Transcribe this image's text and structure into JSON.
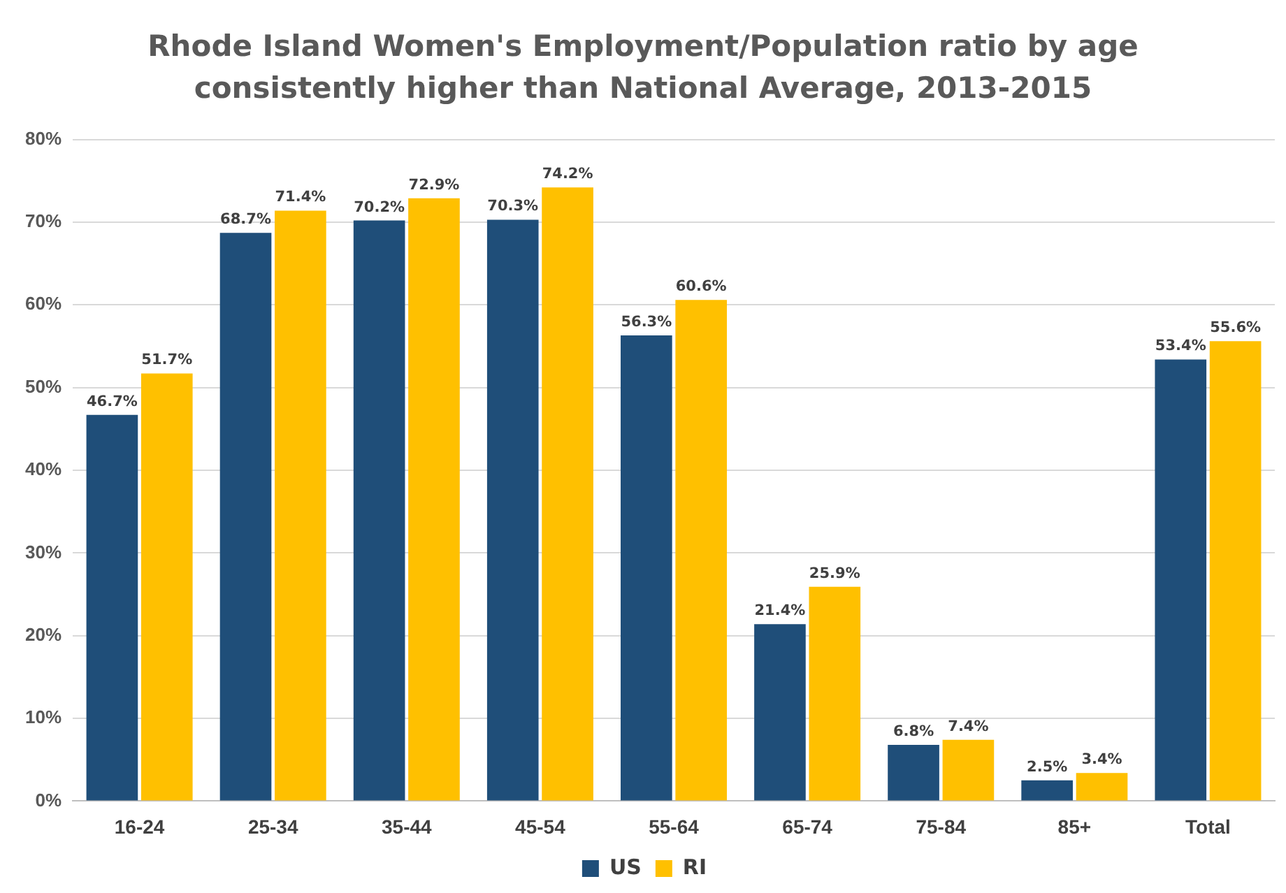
{
  "chart_data": {
    "type": "bar",
    "title": "Rhode Island Women's Employment/Population ratio by age consistently higher than National Average, 2013-2015",
    "categories": [
      "16-24",
      "25-34",
      "35-44",
      "45-54",
      "55-64",
      "65-74",
      "75-84",
      "85+",
      "Total"
    ],
    "series": [
      {
        "name": "US",
        "color": "#1f4e79",
        "values": [
          46.7,
          68.7,
          70.2,
          70.3,
          56.3,
          21.4,
          6.8,
          2.5,
          53.4
        ],
        "value_labels": [
          "46.7%",
          "68.7%",
          "70.2%",
          "70.3%",
          "56.3%",
          "21.4%",
          "6.8%",
          "2.5%",
          "53.4%"
        ]
      },
      {
        "name": "RI",
        "color": "#ffc000",
        "values": [
          51.7,
          71.4,
          72.9,
          74.2,
          60.6,
          25.9,
          7.4,
          3.4,
          55.6
        ],
        "value_labels": [
          "51.7%",
          "71.4%",
          "72.9%",
          "74.2%",
          "60.6%",
          "25.9%",
          "7.4%",
          "3.4%",
          "55.6%"
        ]
      }
    ],
    "ylim": [
      0,
      80
    ],
    "yticks": [
      {
        "value": 0,
        "label": "0%"
      },
      {
        "value": 10,
        "label": "10%"
      },
      {
        "value": 20,
        "label": "20%"
      },
      {
        "value": 30,
        "label": "30%"
      },
      {
        "value": 40,
        "label": "40%"
      },
      {
        "value": 50,
        "label": "50%"
      },
      {
        "value": 60,
        "label": "60%"
      },
      {
        "value": 70,
        "label": "70%"
      },
      {
        "value": 80,
        "label": "80%"
      }
    ],
    "grid": "y",
    "legend": "bottom"
  }
}
